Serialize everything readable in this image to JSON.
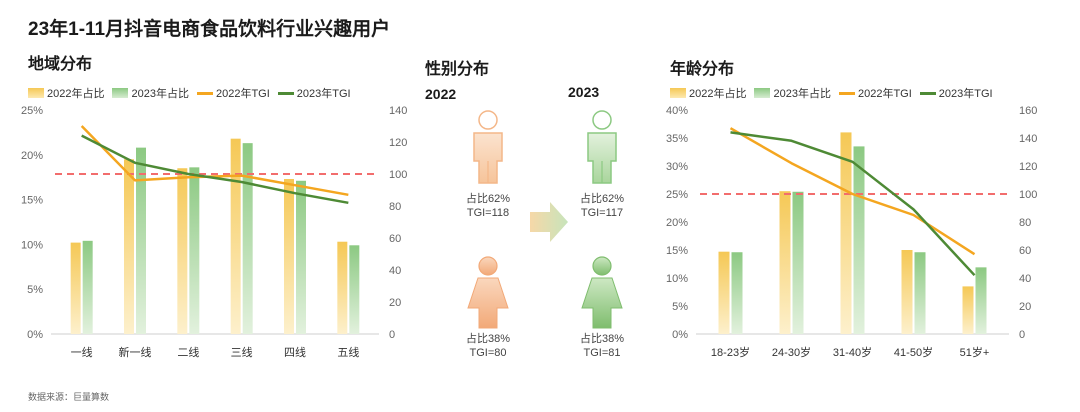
{
  "title": "23年1-11月抖音电商食品饮料行业兴趣用户",
  "source": "数据来源：巨量算数",
  "colors": {
    "y2022": "#f5c855",
    "y2023": "#8cc982",
    "tgi2022": "#f4a620",
    "tgi2023": "#4e8a35",
    "ref": "#f26d6d",
    "axis": "#666666"
  },
  "chart_data": [
    {
      "type": "bar",
      "title": "地域分布",
      "legend": [
        "2022年占比",
        "2023年占比",
        "2022年TGI",
        "2023年TGI"
      ],
      "categories": [
        "一线",
        "新一线",
        "二线",
        "三线",
        "四线",
        "五线"
      ],
      "series": [
        {
          "name": "2022年占比",
          "type": "bar",
          "axis": "left",
          "values": [
            10.2,
            19.5,
            18.5,
            21.8,
            17.3,
            10.3
          ]
        },
        {
          "name": "2023年占比",
          "type": "bar",
          "axis": "left",
          "values": [
            10.4,
            20.8,
            18.6,
            21.3,
            17.1,
            9.9
          ]
        },
        {
          "name": "2022年TGI",
          "type": "line",
          "axis": "right",
          "values": [
            130,
            96,
            98,
            99,
            93,
            87
          ]
        },
        {
          "name": "2023年TGI",
          "type": "line",
          "axis": "right",
          "values": [
            124,
            107,
            100,
            95,
            88,
            82
          ]
        }
      ],
      "left_axis": {
        "ticks": [
          "0%",
          "5%",
          "10%",
          "15%",
          "20%",
          "25%"
        ],
        "ylim": [
          0,
          25
        ]
      },
      "right_axis": {
        "ticks": [
          "0",
          "20",
          "40",
          "60",
          "80",
          "100",
          "120",
          "140"
        ],
        "ylim": [
          0,
          140
        ]
      },
      "reference_line": 100
    },
    {
      "type": "bar",
      "title": "年龄分布",
      "legend": [
        "2022年占比",
        "2023年占比",
        "2022年TGI",
        "2023年TGI"
      ],
      "categories": [
        "18-23岁",
        "24-30岁",
        "31-40岁",
        "41-50岁",
        "51岁+"
      ],
      "series": [
        {
          "name": "2022年占比",
          "type": "bar",
          "axis": "left",
          "values": [
            14.7,
            25.5,
            36.0,
            15.0,
            8.5
          ]
        },
        {
          "name": "2023年占比",
          "type": "bar",
          "axis": "left",
          "values": [
            14.6,
            25.4,
            33.5,
            14.6,
            11.9
          ]
        },
        {
          "name": "2022年TGI",
          "type": "line",
          "axis": "right",
          "values": [
            147,
            122,
            100,
            85,
            57
          ]
        },
        {
          "name": "2023年TGI",
          "type": "line",
          "axis": "right",
          "values": [
            144,
            138,
            123,
            89,
            42
          ]
        }
      ],
      "left_axis": {
        "ticks": [
          "0%",
          "5%",
          "10%",
          "15%",
          "20%",
          "25%",
          "30%",
          "35%",
          "40%"
        ],
        "ylim": [
          0,
          40
        ]
      },
      "right_axis": {
        "ticks": [
          "0",
          "20",
          "40",
          "60",
          "80",
          "100",
          "120",
          "140",
          "160"
        ],
        "ylim": [
          0,
          160
        ]
      },
      "reference_line": 100
    }
  ],
  "gender": {
    "title": "性别分布",
    "y2022": "2022",
    "y2023": "2023",
    "male_2022": {
      "share": "占比62%",
      "tgi": "TGI=118"
    },
    "male_2023": {
      "share": "占比62%",
      "tgi": "TGI=117"
    },
    "female_2022": {
      "share": "占比38%",
      "tgi": "TGI=80"
    },
    "female_2023": {
      "share": "占比38%",
      "tgi": "TGI=81"
    }
  }
}
